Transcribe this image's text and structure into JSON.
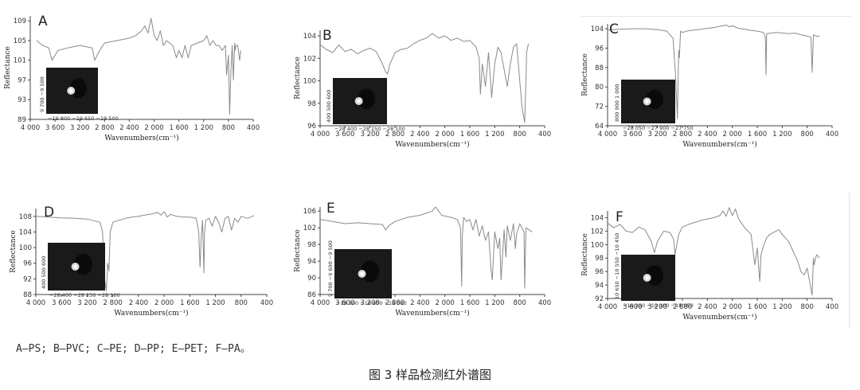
{
  "figure": {
    "legend_text": "A—PS; B—PVC; C—PE; D—PP; E—PET; F—PA。",
    "caption": "图 3   样品检测红外谱图"
  },
  "chart_data": [
    {
      "type": "line",
      "panel_label": "A",
      "xlabel": "Wavenumbers(cm⁻¹)",
      "ylabel": "Reflectance",
      "xlim": [
        4000,
        400
      ],
      "ylim": [
        89,
        110
      ],
      "x_ticks": [
        "4 000",
        "3 600",
        "3 200",
        "2 800",
        "2 400",
        "2 000",
        "1 600",
        "1 200",
        "800",
        "400"
      ],
      "y_ticks": [
        "109",
        "105",
        "101",
        "97",
        "93",
        "89"
      ],
      "inset_x_ticks": "−19 800  −19 650  −19 500",
      "inset_y_ticks": "9 700   −9 500",
      "series": [
        {
          "x": [
            3900,
            3800,
            3700,
            3650,
            3600,
            3550,
            3400,
            3200,
            3000,
            2960,
            2920,
            2880,
            2800,
            2600,
            2400,
            2300,
            2200,
            2150,
            2100,
            2050,
            2000,
            1950,
            1900,
            1850,
            1800,
            1700,
            1640,
            1600,
            1550,
            1500,
            1450,
            1400,
            1300,
            1200,
            1150,
            1100,
            1050,
            1000,
            950,
            900,
            850,
            830,
            800,
            780,
            760,
            740,
            720,
            700,
            690,
            680,
            650,
            620,
            600
          ],
          "y": [
            105,
            104,
            103.5,
            101,
            102,
            103,
            103.5,
            104,
            103.5,
            101,
            102,
            103,
            104.5,
            105,
            105.5,
            106,
            107,
            108,
            106.5,
            109.5,
            106,
            105,
            107,
            104,
            105,
            104,
            101.5,
            103,
            101.5,
            104,
            101.5,
            104,
            104.5,
            105,
            106,
            104,
            105,
            104,
            104,
            103,
            104,
            98,
            102,
            90,
            99,
            104,
            97,
            104.5,
            103,
            104,
            104,
            101,
            103
          ]
        }
      ]
    },
    {
      "type": "line",
      "panel_label": "B",
      "xlabel": "Wavenumbers(cm⁻¹)",
      "ylabel": "Reflectance",
      "xlim": [
        4000,
        400
      ],
      "ylim": [
        96,
        104.5
      ],
      "x_ticks": [
        "4 000",
        "3 600",
        "3 200",
        "2 800",
        "2 400",
        "2 000",
        "1 600",
        "1 200",
        "800",
        "400"
      ],
      "y_ticks": [
        "104",
        "102",
        "100",
        "98",
        "96"
      ],
      "inset_x_ticks": "−28 400  −28 250  −28 100",
      "inset_y_ticks": "400  500  600",
      "series": [
        {
          "x": [
            4000,
            3900,
            3800,
            3700,
            3600,
            3500,
            3400,
            3300,
            3200,
            3100,
            3000,
            2950,
            2920,
            2880,
            2800,
            2700,
            2600,
            2500,
            2400,
            2300,
            2200,
            2100,
            2000,
            1900,
            1800,
            1700,
            1600,
            1500,
            1450,
            1430,
            1400,
            1350,
            1300,
            1250,
            1200,
            1150,
            1100,
            1050,
            1000,
            950,
            900,
            850,
            800,
            760,
            720,
            700,
            690,
            660
          ],
          "y": [
            103.2,
            102.8,
            102.5,
            103.2,
            102.6,
            102.8,
            102.4,
            102.7,
            102.9,
            102.6,
            101.5,
            100.8,
            100.6,
            101.5,
            102.5,
            102.8,
            102.9,
            103.3,
            103.6,
            103.8,
            104.2,
            103.8,
            104.0,
            103.6,
            103.8,
            103.5,
            103.6,
            103.0,
            102.0,
            98.8,
            101.5,
            99.5,
            102.5,
            98.5,
            101.5,
            103.0,
            102.5,
            101.0,
            99.5,
            101.5,
            103.0,
            103.3,
            100.0,
            97.5,
            96.3,
            100.0,
            102.5,
            103.3
          ]
        }
      ]
    },
    {
      "type": "line",
      "panel_label": "C",
      "xlabel": "Wavenumbers(cm⁻¹)",
      "ylabel": "Reflectance",
      "xlim": [
        4000,
        400
      ],
      "ylim": [
        64,
        106
      ],
      "x_ticks": [
        "4 000",
        "3 600",
        "3 200",
        "2 800",
        "2 400",
        "2 000",
        "1 600",
        "1 200",
        "800",
        "400"
      ],
      "y_ticks": [
        "104",
        "96",
        "88",
        "80",
        "72",
        "64"
      ],
      "inset_x_ticks": "−28 050  −27 900  −27 750",
      "inset_y_ticks": "800  900  1 000",
      "series": [
        {
          "x": [
            4000,
            3800,
            3600,
            3400,
            3200,
            3050,
            2950,
            2930,
            2910,
            2880,
            2860,
            2850,
            2830,
            2800,
            2700,
            2500,
            2300,
            2100,
            2050,
            2000,
            1900,
            1800,
            1700,
            1600,
            1500,
            1470,
            1460,
            1450,
            1300,
            1100,
            1000,
            900,
            800,
            740,
            720,
            700,
            650,
            600
          ],
          "y": [
            103.5,
            103.8,
            104,
            104,
            103.6,
            103.0,
            100,
            92,
            85,
            67,
            95,
            92,
            103,
            102.5,
            103.2,
            103.8,
            104.5,
            105.5,
            104.8,
            105.2,
            104.2,
            103.8,
            103.3,
            103.0,
            102.5,
            100.5,
            85,
            102.0,
            102.5,
            102.0,
            102.2,
            101.5,
            101.0,
            100.5,
            86,
            101.5,
            100.8,
            101.0
          ]
        }
      ]
    },
    {
      "type": "line",
      "panel_label": "D",
      "xlabel": "Wavenumbers(cm⁻¹)",
      "ylabel": "Reflectance",
      "xlim": [
        4000,
        400
      ],
      "ylim": [
        88,
        110
      ],
      "x_ticks": [
        "4 000",
        "3 600",
        "3 200",
        "2 800",
        "2 400",
        "2 000",
        "1 600",
        "1 200",
        "800",
        "400"
      ],
      "y_ticks": [
        "108",
        "104",
        "100",
        "96",
        "92",
        "88"
      ],
      "inset_x_ticks": "−28 400  −28 250  −28 100",
      "inset_y_ticks": "400  500  600",
      "series": [
        {
          "x": [
            4000,
            3800,
            3600,
            3400,
            3200,
            3000,
            2960,
            2930,
            2900,
            2880,
            2860,
            2840,
            2800,
            2700,
            2600,
            2500,
            2400,
            2300,
            2200,
            2100,
            2050,
            2000,
            1950,
            1900,
            1800,
            1700,
            1600,
            1500,
            1460,
            1440,
            1420,
            1400,
            1380,
            1370,
            1350,
            1300,
            1250,
            1200,
            1150,
            1100,
            1050,
            1000,
            950,
            900,
            850,
            800,
            700,
            600
          ],
          "y": [
            108.0,
            107.8,
            107.6,
            107.5,
            107.3,
            106.5,
            104,
            92,
            89,
            96,
            94,
            104,
            106.5,
            107.0,
            107.5,
            107.8,
            108.0,
            108.3,
            108.6,
            109.0,
            108.3,
            109.2,
            107.8,
            108.5,
            108.0,
            107.8,
            107.8,
            107.5,
            104,
            95,
            103,
            107.0,
            93.5,
            104,
            107.0,
            107.5,
            105.5,
            108.0,
            106.5,
            104,
            107.5,
            108.0,
            104.5,
            107.5,
            106.5,
            108.0,
            107.5,
            108.2
          ]
        }
      ]
    },
    {
      "type": "line",
      "panel_label": "E",
      "xlabel": "Wavenumbers(cm⁻¹)",
      "ylabel": "Reflectance",
      "xlim": [
        4000,
        400
      ],
      "ylim": [
        86,
        107
      ],
      "x_ticks": [
        "4 000",
        "3 600",
        "3 200",
        "2 800",
        "2 400",
        "2 000",
        "1 600",
        "1 200",
        "800",
        "400"
      ],
      "y_ticks": [
        "106",
        "102",
        "98",
        "94",
        "90",
        "86"
      ],
      "inset_x_ticks": "−19 800  −19 650  −19 500",
      "inset_y_ticks": "9 700  −9 600  −9 500",
      "series": [
        {
          "x": [
            4000,
            3800,
            3600,
            3400,
            3200,
            3000,
            2950,
            2900,
            2800,
            2600,
            2400,
            2300,
            2200,
            2150,
            2100,
            2050,
            2000,
            1900,
            1800,
            1750,
            1730,
            1720,
            1700,
            1650,
            1600,
            1550,
            1500,
            1450,
            1400,
            1350,
            1300,
            1260,
            1240,
            1200,
            1150,
            1120,
            1100,
            1050,
            1020,
            1000,
            950,
            900,
            870,
            850,
            800,
            730,
            720,
            700,
            650,
            600
          ],
          "y": [
            104.0,
            103.5,
            103.0,
            103.2,
            103.0,
            102.8,
            101.5,
            102.5,
            103.5,
            104.5,
            105.0,
            105.5,
            106.0,
            107.0,
            106.0,
            105.0,
            104.8,
            104.5,
            104.0,
            102.0,
            88.0,
            100.0,
            104.5,
            103.5,
            104.0,
            101.5,
            104.0,
            100.0,
            102.5,
            99.0,
            101.0,
            92.0,
            89.5,
            101.0,
            97.0,
            99.5,
            89.5,
            101.5,
            95.0,
            102.5,
            99.0,
            103.0,
            97.0,
            100.5,
            103.0,
            101.0,
            87.5,
            102.0,
            101.5,
            101.0
          ]
        }
      ]
    },
    {
      "type": "line",
      "panel_label": "F",
      "xlabel": "Wavenumbers(cm⁻¹)",
      "ylabel": "Reflectance",
      "xlim": [
        4000,
        400
      ],
      "ylim": [
        92,
        105
      ],
      "x_ticks": [
        "4 000",
        "3 600",
        "3 200",
        "2 800",
        "2 400",
        "2 000",
        "1 600",
        "1 200",
        "800",
        "400"
      ],
      "y_ticks": [
        "104",
        "102",
        "100",
        "98",
        "96",
        "94",
        "92"
      ],
      "inset_x_ticks": "−19 250  −19 100  −18 950",
      "inset_y_ticks": "10 650  −10 550  −10 450",
      "series": [
        {
          "x": [
            4000,
            3900,
            3800,
            3700,
            3600,
            3500,
            3400,
            3300,
            3250,
            3200,
            3100,
            3000,
            2940,
            2920,
            2860,
            2800,
            2700,
            2600,
            2500,
            2400,
            2300,
            2200,
            2150,
            2100,
            2050,
            2000,
            1950,
            1900,
            1800,
            1700,
            1640,
            1600,
            1560,
            1540,
            1500,
            1450,
            1400,
            1300,
            1250,
            1200,
            1150,
            1100,
            1050,
            1000,
            950,
            900,
            850,
            800,
            720,
            700,
            690,
            650,
            600
          ],
          "y": [
            103.2,
            102.5,
            103.0,
            102.0,
            101.8,
            102.6,
            102.2,
            100.5,
            98.8,
            100.5,
            102.0,
            101.8,
            100.8,
            98.5,
            101.5,
            102.6,
            103.0,
            103.3,
            103.6,
            103.8,
            104.0,
            104.3,
            105.0,
            104.2,
            105.5,
            104.3,
            105.3,
            103.8,
            102.5,
            101.5,
            97.0,
            99.5,
            94.5,
            98.5,
            99.8,
            101.0,
            101.5,
            102.0,
            102.2,
            101.5,
            101.0,
            100.5,
            99.5,
            98.5,
            97.5,
            96.0,
            95.5,
            96.5,
            92.5,
            98.0,
            97.0,
            98.5,
            98.0
          ]
        }
      ]
    }
  ]
}
